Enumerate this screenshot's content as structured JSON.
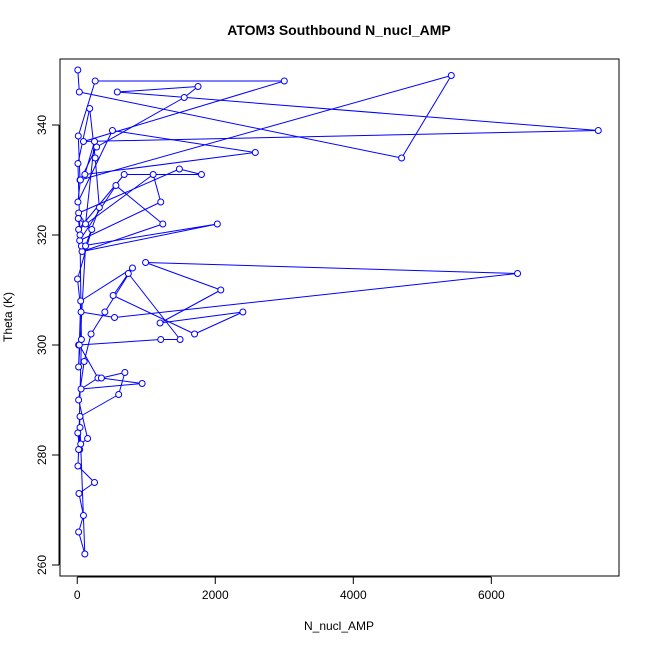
{
  "chart_data": {
    "type": "scatter",
    "title": "ATOM3 Southbound N_nucl_AMP",
    "xlabel": "N_nucl_AMP",
    "ylabel": "Theta (K)",
    "xlim": [
      -250,
      7850
    ],
    "ylim": [
      258,
      352
    ],
    "xticks": [
      0,
      2000,
      4000,
      6000
    ],
    "yticks": [
      260,
      280,
      300,
      320,
      340
    ],
    "grid": false,
    "legend": "none",
    "line_color": "#0000ff",
    "marker": "open-circle",
    "series": [
      {
        "x": [
          8,
          30,
          4700,
          5420,
          40,
          15,
          260,
          3000,
          90,
          7550,
          580,
          1750,
          1550,
          280,
          45,
          10,
          510,
          2580,
          110,
          250,
          120,
          20,
          1480,
          1800,
          680,
          20,
          1100,
          1210,
          35,
          560,
          1240,
          70,
          2030,
          60,
          15,
          210,
          4,
          55,
          540,
          6380,
          990,
          2080,
          1200,
          2400,
          1700,
          520,
          740,
          1490,
          1210,
          20,
          30,
          300,
          55,
          940,
          350,
          690,
          600,
          40,
          10,
          250,
          25,
          90,
          20,
          110,
          40,
          35,
          8,
          50,
          150,
          20,
          100,
          200,
          400,
          800,
          50,
          20,
          120,
          320,
          260,
          180,
          10,
          40,
          60,
          20
        ],
        "y": [
          350,
          346,
          334,
          349,
          330,
          338,
          348,
          348,
          337,
          339,
          346,
          347,
          345,
          336,
          330,
          326,
          339,
          335,
          331,
          337,
          322,
          324,
          332,
          331,
          331,
          321,
          331,
          326,
          319,
          329,
          322,
          317,
          322,
          318,
          323,
          321,
          312,
          306,
          305,
          313,
          315,
          310,
          304,
          306,
          302,
          309,
          313,
          301,
          301,
          300,
          300,
          294,
          292,
          293,
          294,
          295,
          291,
          287,
          278,
          275,
          273,
          269,
          266,
          262,
          285,
          281,
          284,
          282,
          283,
          290,
          297,
          302,
          306,
          314,
          308,
          296,
          318,
          325,
          334,
          343,
          333,
          320,
          301,
          281
        ]
      }
    ]
  }
}
